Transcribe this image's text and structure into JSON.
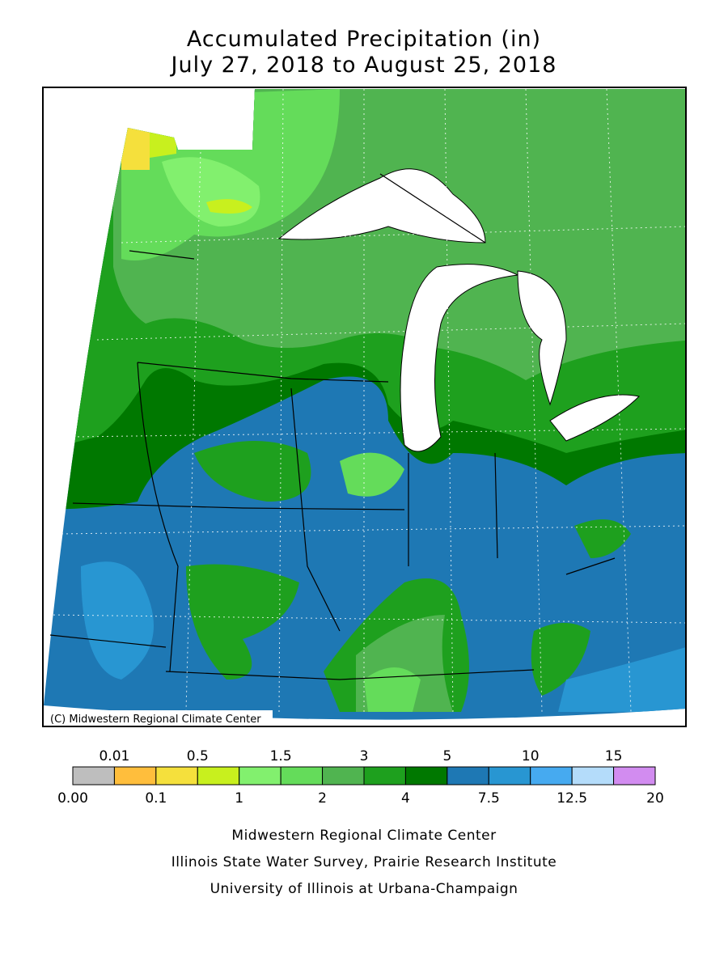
{
  "title": {
    "line1": "Accumulated Precipitation (in)",
    "line2": "July 27, 2018 to August 25, 2018"
  },
  "map": {
    "copyright": "(C) Midwestern Regional Climate Center"
  },
  "legend": {
    "colors": [
      "#bebebe",
      "#ffbe3c",
      "#f5e03c",
      "#c8f01e",
      "#82f06e",
      "#64dc5a",
      "#50b450",
      "#1ea01e",
      "#007800",
      "#1e78b4",
      "#2896d2",
      "#46aaf0",
      "#b4dcfa",
      "#d28cf0"
    ],
    "labels": [
      "0.00",
      "0.01",
      "0.1",
      "0.5",
      "1",
      "1.5",
      "2",
      "3",
      "4",
      "5",
      "7.5",
      "10",
      "12.5",
      "15",
      "20"
    ]
  },
  "credits": [
    "Midwestern Regional Climate Center",
    "Illinois State Water Survey, Prairie Research Institute",
    "University of Illinois at Urbana-Champaign"
  ]
}
